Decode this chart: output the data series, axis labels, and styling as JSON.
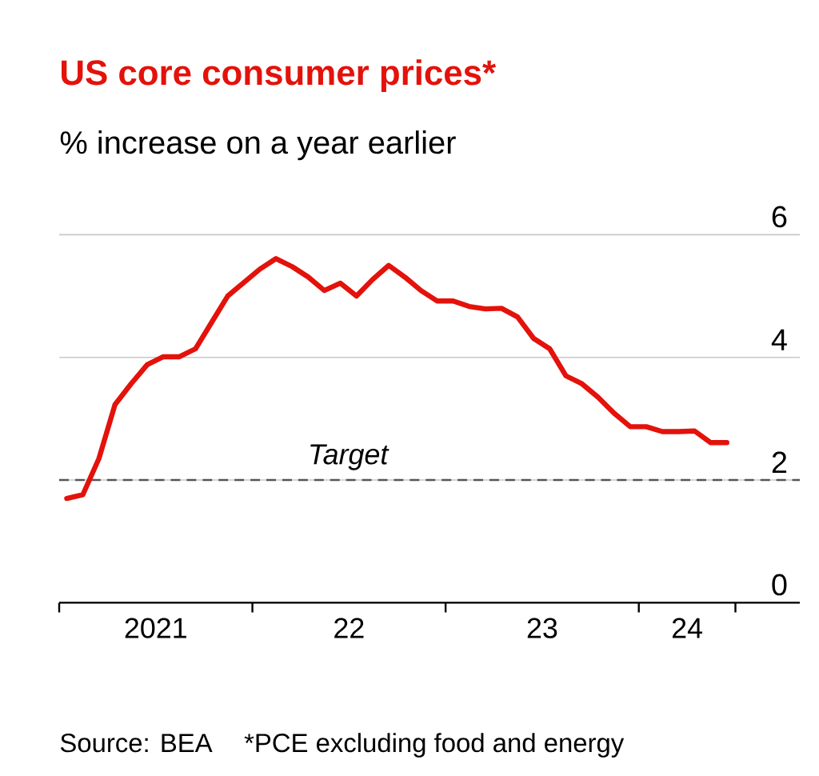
{
  "chart_data": {
    "type": "line",
    "title": "US core consumer prices*",
    "subtitle": "% increase on a year earlier",
    "annotations": [
      "Source: BEA",
      "*PCE excluding food and energy"
    ],
    "x": [
      "2021-01-15",
      "2021-02-15",
      "2021-03-15",
      "2021-04-15",
      "2021-05-15",
      "2021-06-15",
      "2021-07-15",
      "2021-08-15",
      "2021-09-15",
      "2021-10-15",
      "2021-11-15",
      "2021-12-15",
      "2022-01-15",
      "2022-02-15",
      "2022-03-15",
      "2022-04-15",
      "2022-05-15",
      "2022-06-15",
      "2022-07-15",
      "2022-08-15",
      "2022-09-15",
      "2022-10-15",
      "2022-11-15",
      "2022-12-15",
      "2023-01-15",
      "2023-02-15",
      "2023-03-15",
      "2023-04-15",
      "2023-05-15",
      "2023-06-15",
      "2023-07-15",
      "2023-08-15",
      "2023-09-15",
      "2023-10-15",
      "2023-11-15",
      "2023-12-15",
      "2024-01-15",
      "2024-02-15",
      "2024-03-15",
      "2024-04-15",
      "2024-05-15",
      "2024-06-15"
    ],
    "series": [
      {
        "color": "#e3120b",
        "values": [
          1.7,
          1.76,
          2.35,
          3.23,
          3.57,
          3.88,
          4.01,
          4.01,
          4.14,
          4.57,
          5.0,
          5.22,
          5.44,
          5.61,
          5.48,
          5.31,
          5.09,
          5.21,
          5.0,
          5.27,
          5.5,
          5.31,
          5.09,
          4.92,
          4.92,
          4.83,
          4.79,
          4.8,
          4.66,
          4.31,
          4.14,
          3.7,
          3.57,
          3.35,
          3.09,
          2.87,
          2.87,
          2.79,
          2.79,
          2.8,
          2.61,
          2.61
        ]
      }
    ],
    "xlim": [
      "2021-01",
      "2024-11"
    ],
    "xticks": [
      {
        "value": "2021-01",
        "label": null
      },
      {
        "value": "2022-01",
        "label": null
      },
      {
        "value": "2023-01",
        "label": null
      },
      {
        "value": "2024-01",
        "label": null
      },
      {
        "value": "2024-07",
        "label": null
      },
      {
        "value": "2021-07",
        "label": "2021"
      },
      {
        "value": "2022-07",
        "label": "22"
      },
      {
        "value": "2023-07",
        "label": "23"
      },
      {
        "value": "2024-04",
        "label": "24"
      }
    ],
    "ylim": [
      0,
      6
    ],
    "yticks": [
      0,
      2,
      4,
      6
    ],
    "grid": "y",
    "marker": "none",
    "line_style": "solid",
    "ref_lines": [
      {
        "axis": "y",
        "value": 2,
        "label": "Target",
        "color": "#555555",
        "line_style": "dashed"
      }
    ]
  }
}
